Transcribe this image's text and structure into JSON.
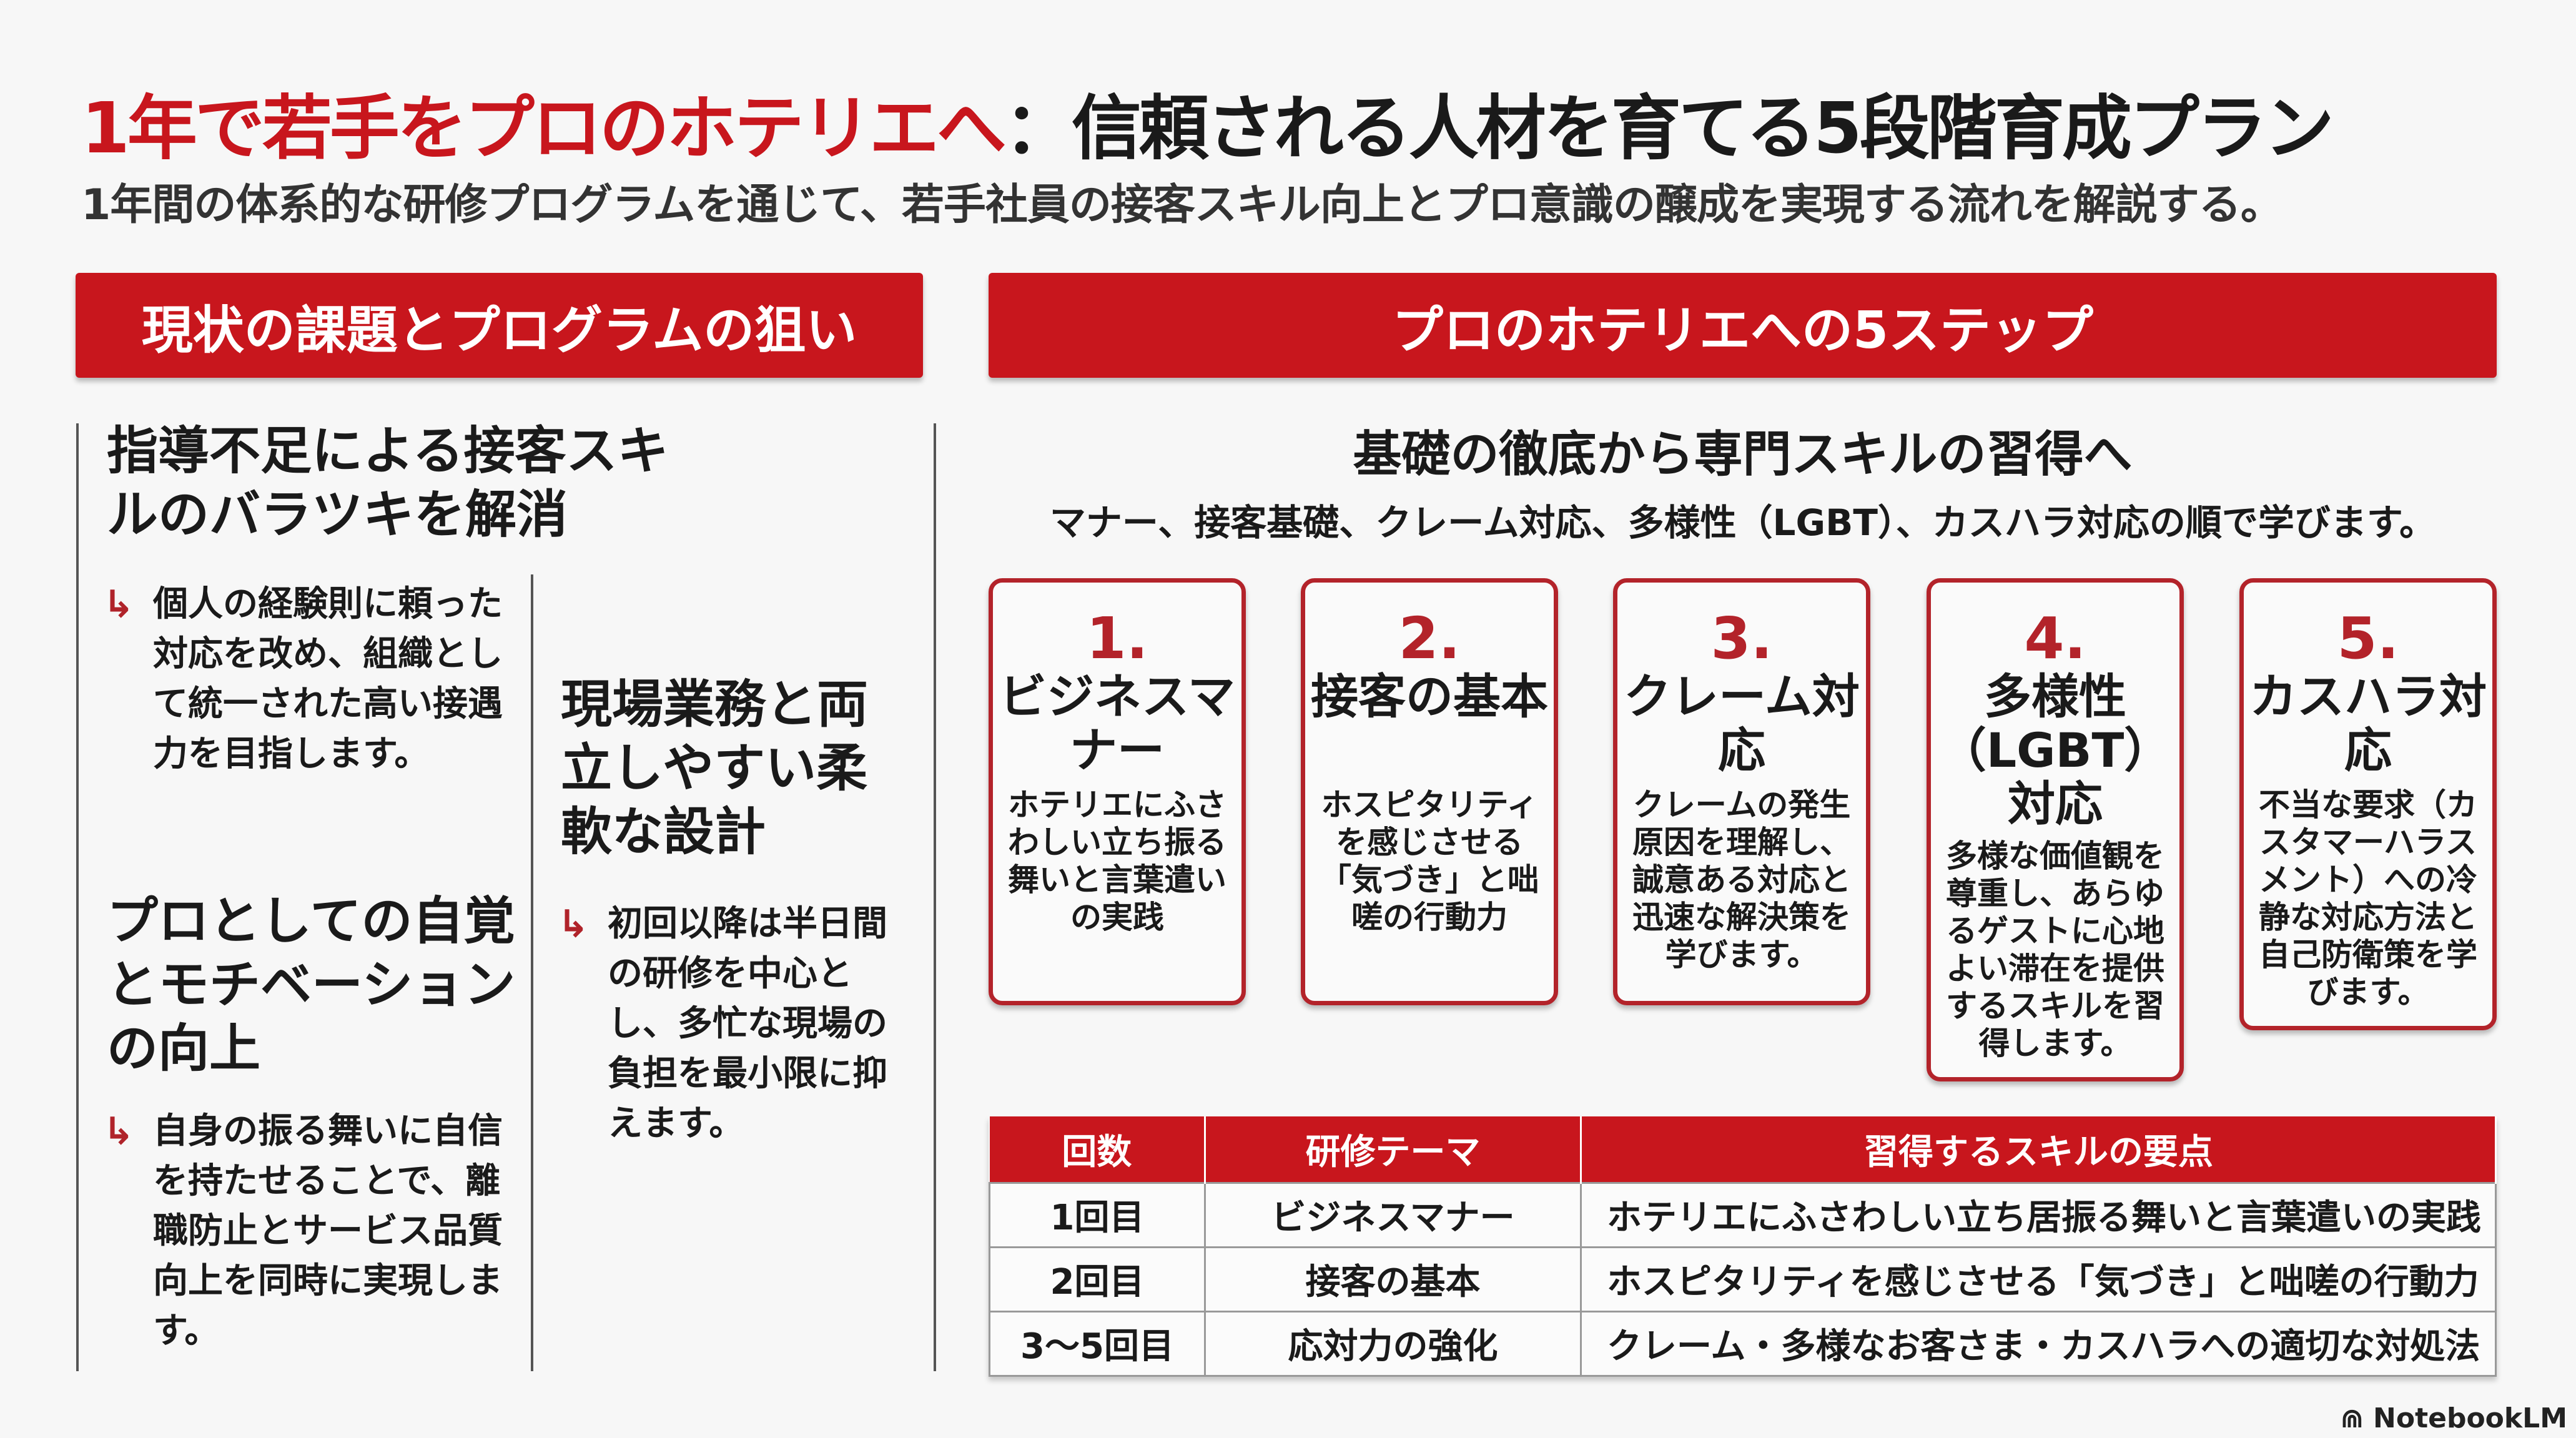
{
  "title": {
    "highlight": "1年で若手をプロのホテリエへ",
    "rest": "：信頼される人材を育てる5段階育成プラン"
  },
  "subtitle": "1年間の体系的な研修プログラムを通じて、若手社員の接客スキル向上とプロ意識の醸成を実現する流れを解説する。",
  "left": {
    "header": "現状の課題とプログラムの狙い",
    "sections": [
      {
        "heading": "指導不足による接客スキルのバラツキを解消",
        "body": "個人の経験則に頼った対応を改め、組織として統一された高い接遇力を目指します。"
      },
      {
        "heading": "プロとしての自覚とモチベーションの向上",
        "body": "自身の振る舞いに自信を持たせることで、離職防止とサービス品質向上を同時に実現します。"
      },
      {
        "heading": "現場業務と両立しやすい柔軟な設計",
        "body": "初回以降は半日間の研修を中心とし、多忙な現場の負担を最小限に抑えます。"
      }
    ],
    "arrow_icon": "return-arrow-icon"
  },
  "right": {
    "header": "プロのホテリエへの5ステップ",
    "heading": "基礎の徹底から専門スキルの習得へ",
    "subheading": "マナー、接客基礎、クレーム対応、多様性（LGBT）、カスハラ対応の順で学びます。",
    "steps": [
      {
        "num": "1.",
        "title": "ビジネスマナー",
        "desc": "ホテリエにふさわしい立ち振る舞いと言葉遣いの実践"
      },
      {
        "num": "2.",
        "title": "接客の基本",
        "desc": "ホスピタリティを感じさせる「気づき」と咄嗟の行動力"
      },
      {
        "num": "3.",
        "title": "クレーム対応",
        "desc": "クレームの発生原因を理解し、誠意ある対応と迅速な解決策を学びます。"
      },
      {
        "num": "4.",
        "title": "多様性（LGBT）対応",
        "desc": "多様な価値観を尊重し、あらゆるゲストに心地よい滞在を提供するスキルを習得します。"
      },
      {
        "num": "5.",
        "title": "カスハラ対応",
        "desc": "不当な要求（カスタマーハラスメント）への冷静な対応方法と自己防衛策を学びます。"
      }
    ],
    "table": {
      "headers": [
        "回数",
        "研修テーマ",
        "習得するスキルの要点"
      ],
      "rows": [
        [
          "1回目",
          "ビジネスマナー",
          "ホテリエにふさわしい立ち居振る舞いと言葉遣いの実践"
        ],
        [
          "2回目",
          "接客の基本",
          "ホスピタリティを感じさせる「気づき」と咄嗟の行動力"
        ],
        [
          "3〜5回目",
          "応対力の強化",
          "クレーム・多様なお客さま・カスハラへの適切な対処法"
        ]
      ]
    }
  },
  "brand": "NotebookLM",
  "colors": {
    "accent": "#c8161d",
    "card_border": "#b3232a"
  }
}
